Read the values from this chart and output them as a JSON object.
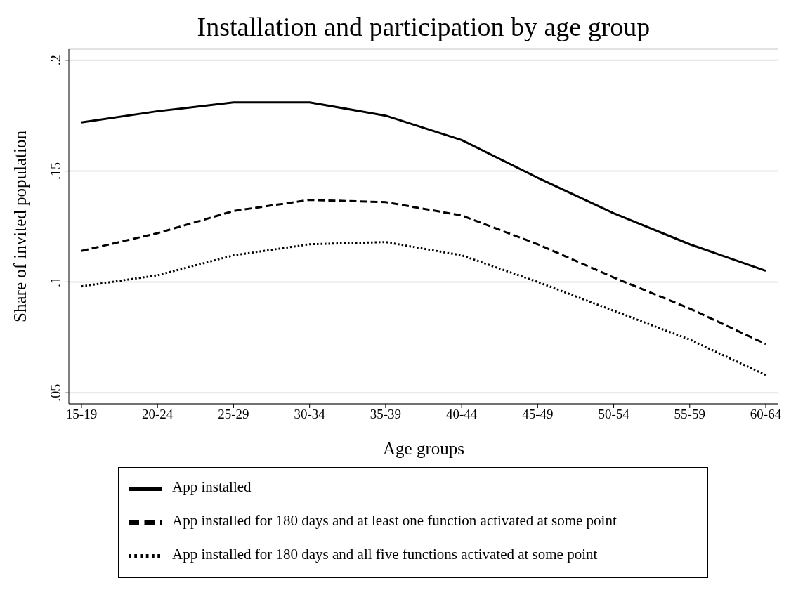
{
  "chart_data": {
    "type": "line",
    "title": "Installation and participation by age group",
    "xlabel": "Age groups",
    "ylabel": "Share of invited population",
    "categories": [
      "15-19",
      "20-24",
      "25-29",
      "30-34",
      "35-39",
      "40-44",
      "45-49",
      "50-54",
      "55-59",
      "60-64"
    ],
    "series": [
      {
        "name": "App installed",
        "color": "#000000",
        "line_style": "solid",
        "values": [
          0.172,
          0.177,
          0.181,
          0.181,
          0.175,
          0.164,
          0.147,
          0.131,
          0.117,
          0.105
        ]
      },
      {
        "name": "App installed for 180 days and at least one function activated at some point",
        "color": "#000000",
        "line_style": "dashed",
        "values": [
          0.114,
          0.122,
          0.132,
          0.137,
          0.136,
          0.13,
          0.117,
          0.102,
          0.088,
          0.072
        ]
      },
      {
        "name": "App installed for 180 days and all five functions activated at some point",
        "color": "#000000",
        "line_style": "dotted",
        "values": [
          0.098,
          0.103,
          0.112,
          0.117,
          0.118,
          0.112,
          0.1,
          0.087,
          0.074,
          0.058
        ]
      }
    ],
    "ylim": [
      0.045,
      0.205
    ],
    "yticks": [
      {
        "value": 0.05,
        "label": ".05"
      },
      {
        "value": 0.1,
        "label": ".1"
      },
      {
        "value": 0.15,
        "label": ".15"
      },
      {
        "value": 0.2,
        "label": ".2"
      }
    ],
    "grid": "y",
    "legend": "bottom",
    "marker": "none"
  }
}
